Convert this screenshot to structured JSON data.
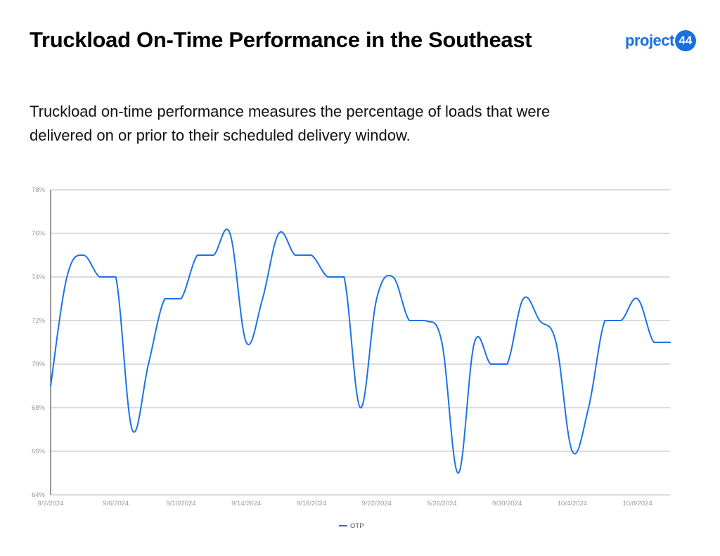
{
  "header": {
    "title": "Truckload On-Time Performance in the Southeast",
    "subtitle": "Truckload on-time performance measures the percentage of loads that were delivered on or prior to their scheduled delivery window."
  },
  "logo": {
    "text": "project",
    "badge": "44",
    "color": "#1a6fe0"
  },
  "chart_data": {
    "type": "line",
    "title": "Truckload On-Time Performance in the Southeast",
    "xlabel": "",
    "ylabel": "",
    "ylim": [
      64,
      78
    ],
    "yticks": [
      "64%",
      "66%",
      "68%",
      "70%",
      "72%",
      "74%",
      "76%",
      "78%"
    ],
    "xticks": [
      "9/2/2024",
      "9/6/2024",
      "9/10/2024",
      "9/14/2024",
      "9/18/2024",
      "9/22/2024",
      "9/26/2024",
      "9/30/2024",
      "10/4/2024",
      "10/8/2024"
    ],
    "x": [
      "9/2/2024",
      "9/3/2024",
      "9/4/2024",
      "9/5/2024",
      "9/6/2024",
      "9/7/2024",
      "9/8/2024",
      "9/9/2024",
      "9/10/2024",
      "9/11/2024",
      "9/12/2024",
      "9/13/2024",
      "9/14/2024",
      "9/15/2024",
      "9/16/2024",
      "9/17/2024",
      "9/18/2024",
      "9/19/2024",
      "9/20/2024",
      "9/21/2024",
      "9/22/2024",
      "9/23/2024",
      "9/24/2024",
      "9/25/2024",
      "9/26/2024",
      "9/27/2024",
      "9/28/2024",
      "9/29/2024",
      "9/30/2024",
      "10/1/2024",
      "10/2/2024",
      "10/3/2024",
      "10/4/2024",
      "10/5/2024",
      "10/6/2024",
      "10/7/2024",
      "10/8/2024",
      "10/9/2024",
      "10/10/2024"
    ],
    "series": [
      {
        "name": "OTP",
        "color": "#1a73e8",
        "values": [
          69,
          74,
          75,
          74,
          74,
          67,
          70,
          73,
          73,
          75,
          75,
          76,
          71,
          73,
          76,
          75,
          75,
          74,
          74,
          68,
          73,
          74,
          72,
          72,
          71,
          65,
          71,
          70,
          70,
          73,
          72,
          71,
          66,
          68,
          72,
          72,
          73,
          71,
          71
        ]
      }
    ],
    "grid": true,
    "legend_position": "bottom"
  }
}
